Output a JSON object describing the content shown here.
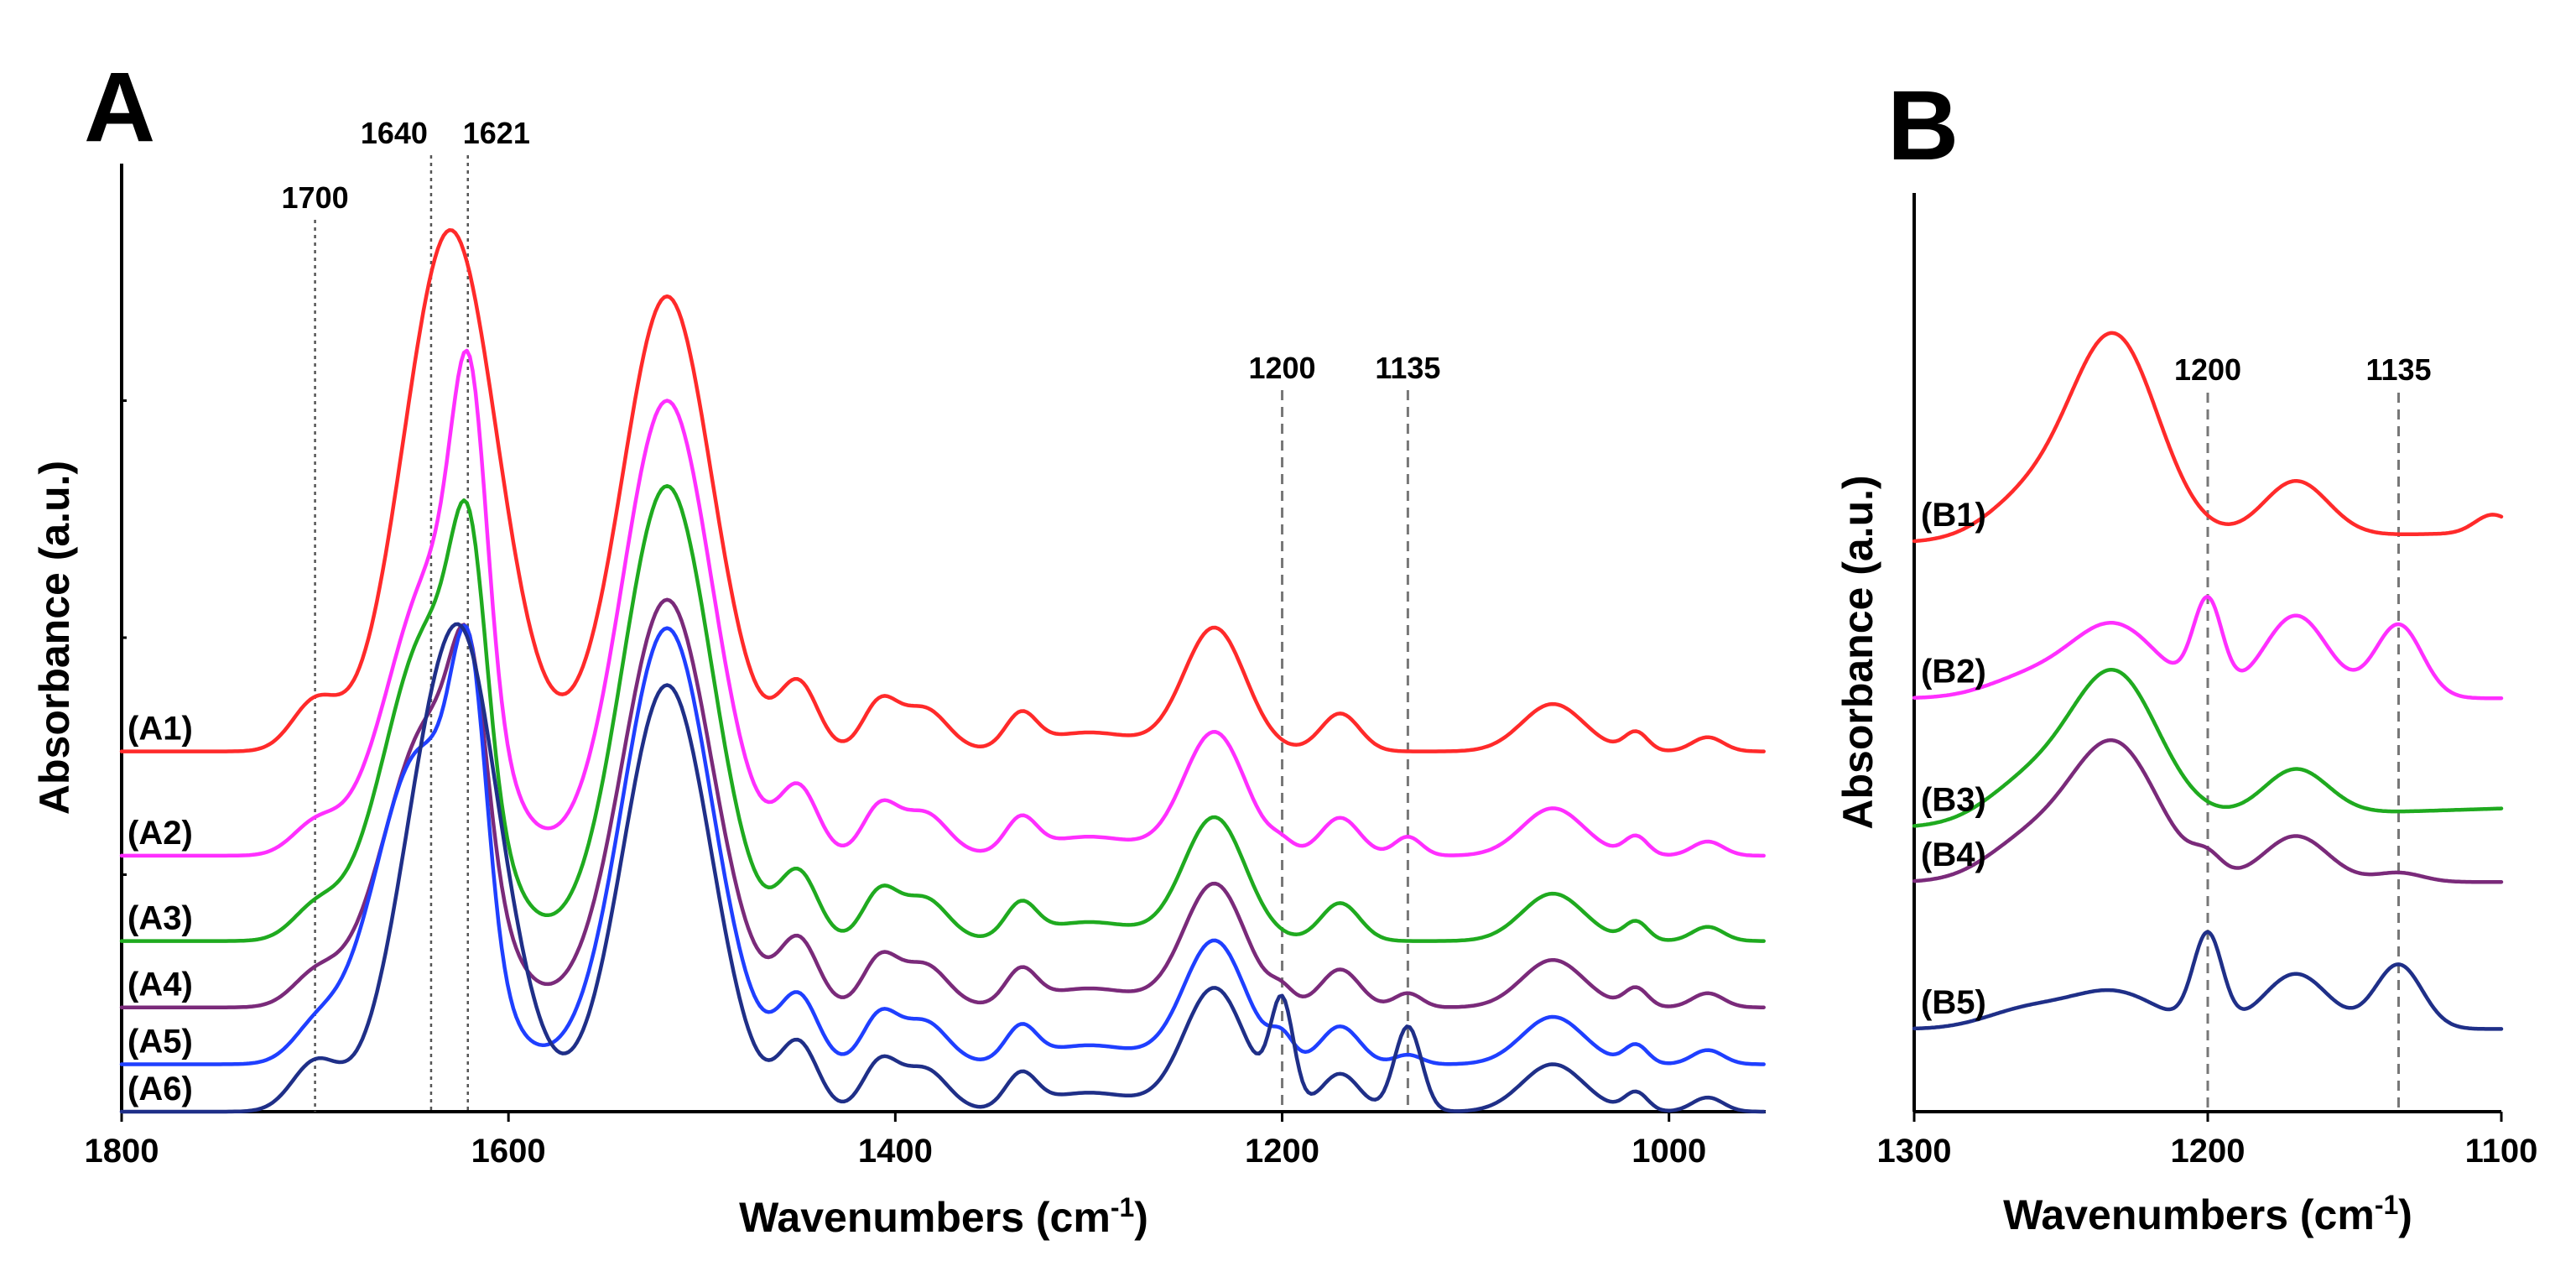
{
  "chart_data": [
    {
      "panel": "A",
      "type": "line",
      "title": "",
      "xlabel": "Wavenumbers (cm",
      "xlabel_sup": "-1",
      "xlabel_end": ")",
      "ylabel": "Absorbance (a.u.)",
      "xlim": [
        1800,
        950
      ],
      "x_reversed": true,
      "ylim": [
        0,
        1
      ],
      "y_ticks_labeled": false,
      "x_ticks": [
        "1800",
        "1600",
        "1400",
        "1200",
        "1000"
      ],
      "reference_lines": [
        {
          "x": 1700,
          "label": "1700",
          "style": "dotted"
        },
        {
          "x": 1640,
          "label": "1640",
          "style": "dotted"
        },
        {
          "x": 1621,
          "label": "1621",
          "style": "dotted"
        },
        {
          "x": 1200,
          "label": "1200",
          "style": "dashed"
        },
        {
          "x": 1135,
          "label": "1135",
          "style": "dashed"
        }
      ],
      "series": [
        {
          "name": "(A1)",
          "color": "#ff2a2a",
          "offset": 0.38,
          "amide1": 0.55,
          "amide1_pos": 1630,
          "amide2": 0.48,
          "ss1621": 0,
          "b1200": 0,
          "b1135": 0
        },
        {
          "name": "(A2)",
          "color": "#ff2fff",
          "offset": 0.27,
          "amide1": 0.3,
          "amide1_pos": 1638,
          "amide2": 0.48,
          "ss1621": 0.3,
          "b1200": 0.01,
          "b1135": 0.02
        },
        {
          "name": "(A3)",
          "color": "#1faa1f",
          "offset": 0.18,
          "amide1": 0.33,
          "amide1_pos": 1640,
          "amide2": 0.48,
          "ss1621": 0.22,
          "b1200": 0,
          "b1135": 0
        },
        {
          "name": "(A4)",
          "color": "#7a2a7a",
          "offset": 0.11,
          "amide1": 0.3,
          "amide1_pos": 1640,
          "amide2": 0.43,
          "ss1621": 0.18,
          "b1200": 0.015,
          "b1135": 0.015
        },
        {
          "name": "(A5)",
          "color": "#1f3fff",
          "offset": 0.05,
          "amide1": 0.33,
          "amide1_pos": 1645,
          "amide2": 0.46,
          "ss1621": 0.26,
          "b1200": 0.025,
          "b1135": 0.01
        },
        {
          "name": "(A6)",
          "color": "#1f2f88",
          "offset": 0.0,
          "amide1": 0.5,
          "amide1_pos": 1628,
          "amide2": 0.45,
          "ss1621": 0.02,
          "b1200": 0.11,
          "b1135": 0.09
        }
      ]
    },
    {
      "panel": "B",
      "type": "line",
      "title": "",
      "xlabel": "Wavenumbers (cm",
      "xlabel_sup": "-1",
      "xlabel_end": ")",
      "ylabel": "Absorbance (a.u.)",
      "xlim": [
        1300,
        1100
      ],
      "x_reversed": true,
      "ylim": [
        0,
        1
      ],
      "y_ticks_labeled": false,
      "x_ticks": [
        "1300",
        "1200",
        "1100"
      ],
      "reference_lines": [
        {
          "x": 1200,
          "label": "1200",
          "style": "dashed"
        },
        {
          "x": 1135,
          "label": "1135",
          "style": "dashed"
        }
      ],
      "series": [
        {
          "name": "(B1)",
          "color": "#ff2a2a",
          "offset": 0.62,
          "base_rise": 0.01,
          "p1232": 0.22,
          "p1170": 0.06,
          "p1200": 0.0,
          "p1135": 0.0,
          "p1110": 0.02
        },
        {
          "name": "(B2)",
          "color": "#ff2fff",
          "offset": 0.45,
          "base_rise": 0.0,
          "p1232": 0.08,
          "p1170": 0.09,
          "p1200": 0.1,
          "p1135": 0.08,
          "p1110": 0.0
        },
        {
          "name": "(B3)",
          "color": "#1faa1f",
          "offset": 0.31,
          "base_rise": 0.02,
          "p1232": 0.16,
          "p1170": 0.05,
          "p1200": 0.0,
          "p1135": 0.0,
          "p1110": 0.0
        },
        {
          "name": "(B4)",
          "color": "#7a2a7a",
          "offset": 0.25,
          "base_rise": 0.0,
          "p1232": 0.15,
          "p1170": 0.05,
          "p1200": 0.02,
          "p1135": 0.01,
          "p1110": 0.0
        },
        {
          "name": "(B5)",
          "color": "#1f2f88",
          "offset": 0.09,
          "base_rise": 0.0,
          "p1232": 0.04,
          "p1170": 0.06,
          "p1200": 0.1,
          "p1135": 0.07,
          "p1110": 0.0
        }
      ]
    }
  ],
  "labels": {
    "panel_a": "A",
    "panel_b": "B"
  }
}
